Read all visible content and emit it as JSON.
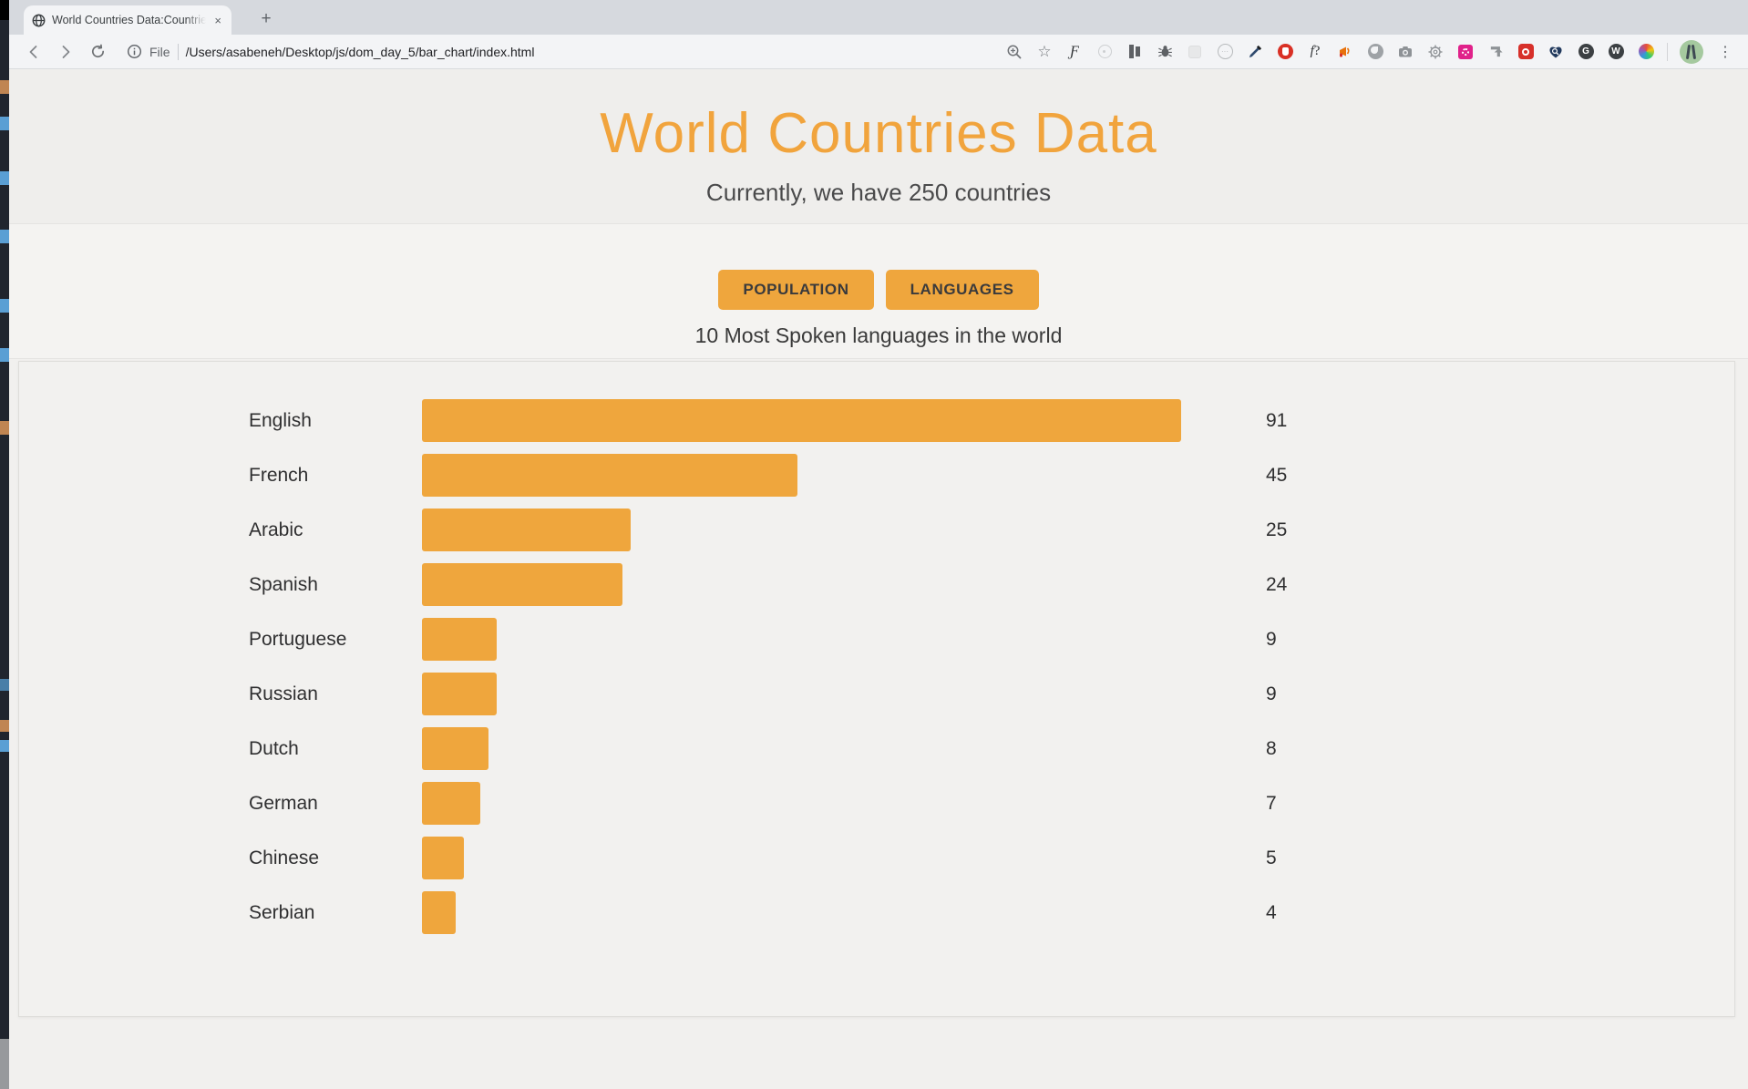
{
  "browser": {
    "tab": {
      "title": "World Countries Data:Countrie",
      "close_glyph": "×",
      "new_tab_glyph": "+"
    },
    "toolbar": {
      "file_label": "File",
      "url": "/Users/asabeneh/Desktop/js/dom_day_5/bar_chart/index.html",
      "kebab_glyph": "⋮",
      "star_glyph": "☆",
      "fonts_glyph": "Ƒ",
      "dots_glyph": "···",
      "g_badge": "G",
      "w_badge": "W"
    }
  },
  "page": {
    "title": "World Countries Data",
    "subtitle": "Currently, we have 250 countries",
    "buttons": {
      "population": "POPULATION",
      "languages": "LANGUAGES"
    },
    "chart_heading": "10 Most Spoken languages in the world"
  },
  "colors": {
    "accent_orange": "#EFA63D",
    "title_orange": "#F1A43D",
    "page_bg": "#F1F0EE"
  },
  "chart_data": {
    "type": "bar",
    "orientation": "horizontal",
    "title": "10 Most Spoken languages in the world",
    "categories": [
      "English",
      "French",
      "Arabic",
      "Spanish",
      "Portuguese",
      "Russian",
      "Dutch",
      "German",
      "Chinese",
      "Serbian"
    ],
    "values": [
      91,
      45,
      25,
      24,
      9,
      9,
      8,
      7,
      5,
      4
    ],
    "xlabel": "",
    "ylabel": "",
    "xlim": [
      0,
      91
    ],
    "bar_color": "#EFA63D",
    "grid": false,
    "legend": false
  }
}
